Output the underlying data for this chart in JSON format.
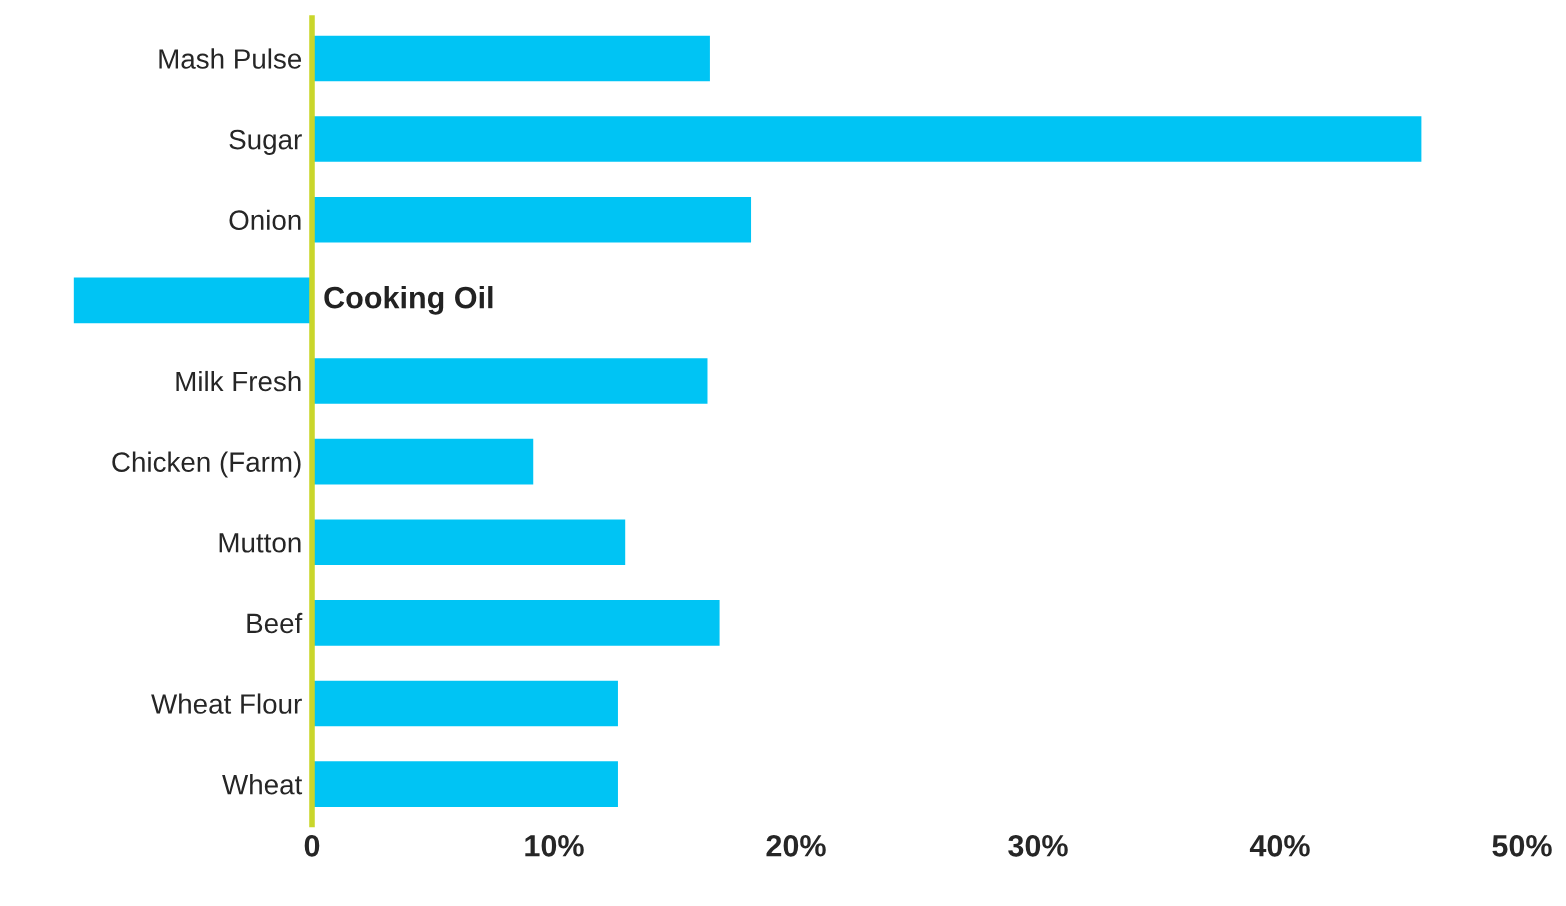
{
  "chart_data": {
    "type": "bar",
    "orientation": "horizontal",
    "categories": [
      "Mash Pulse",
      "Sugar",
      "Onion",
      "Cooking Oil",
      "Milk Fresh",
      "Chicken (Farm)",
      "Mutton",
      "Beef",
      "Wheat Flour",
      "Wheat"
    ],
    "values": [
      16.5,
      45.9,
      18.2,
      -9.9,
      16.4,
      9.2,
      13.0,
      16.9,
      12.7,
      12.7
    ],
    "color": "#00c4f4",
    "xlim": [
      -10,
      50
    ],
    "xticks": [
      0,
      {
        "value": 10,
        "label": "10%"
      },
      {
        "value": 20,
        "label": "20%"
      },
      {
        "value": 30,
        "label": "30%"
      },
      {
        "value": 40,
        "label": "40%"
      },
      {
        "value": 50,
        "label": "50%"
      }
    ],
    "grid": false,
    "legend": false
  }
}
